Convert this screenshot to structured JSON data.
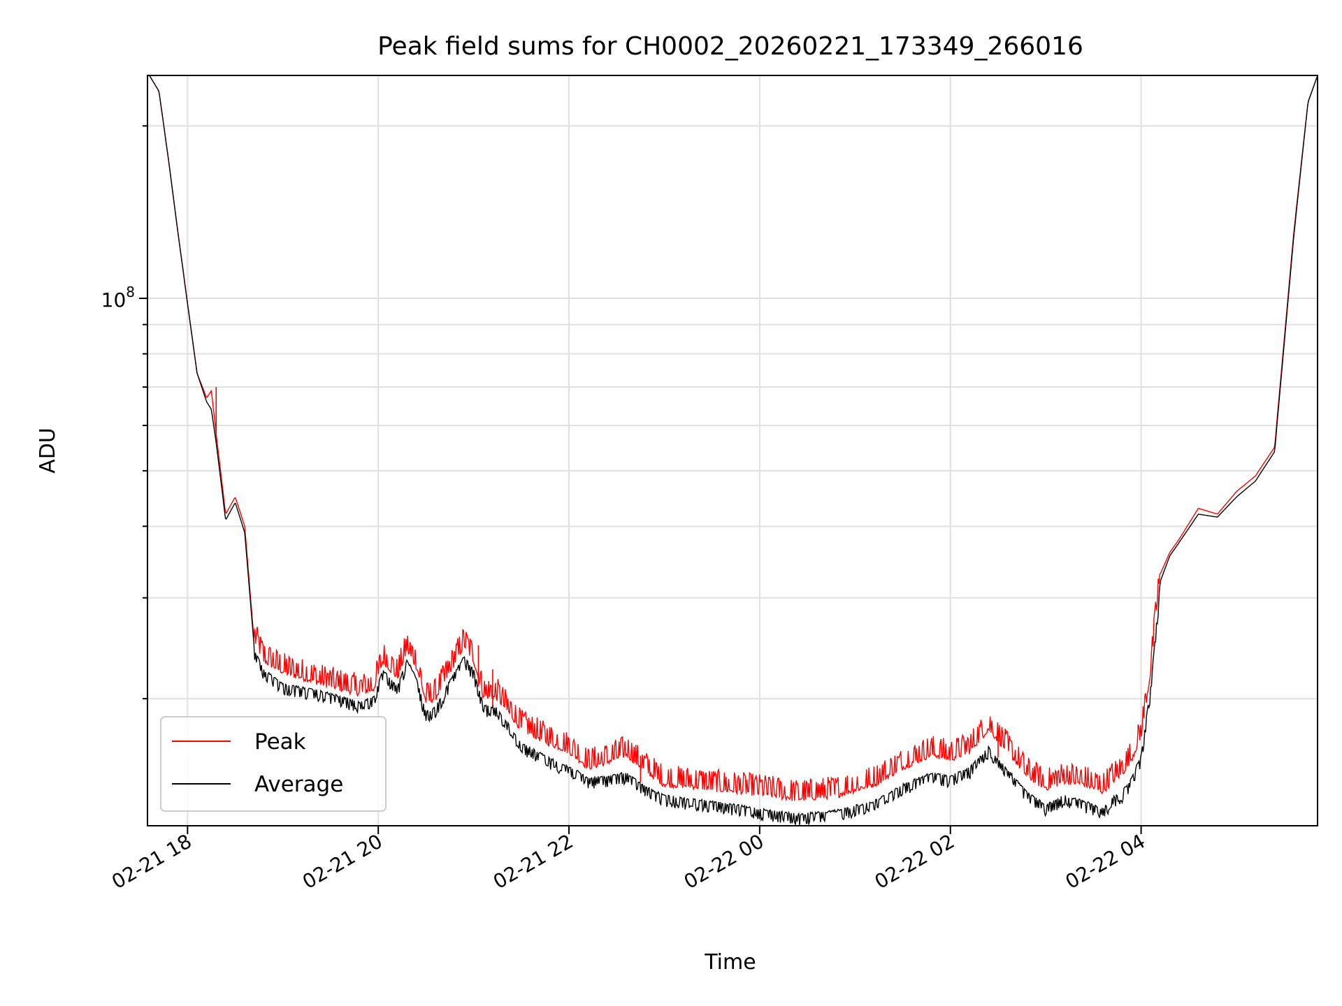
{
  "chart_data": {
    "type": "line",
    "title": "Peak field sums for CH0002_20260221_173349_266016",
    "xlabel": "Time",
    "ylabel": "ADU",
    "yscale": "log",
    "ylim": [
      12000000,
      245000000
    ],
    "xlim_hours": [
      17.58,
      5.85
    ],
    "x_ticks": [
      {
        "hour": 18,
        "label": "02-21 18"
      },
      {
        "hour": 20,
        "label": "02-21 20"
      },
      {
        "hour": 22,
        "label": "02-21 22"
      },
      {
        "hour": 24,
        "label": "02-22 00"
      },
      {
        "hour": 26,
        "label": "02-22 02"
      },
      {
        "hour": 28,
        "label": "02-22 04"
      }
    ],
    "y_ticks": [
      {
        "value": 100000000,
        "base": "10",
        "exponent": "8"
      }
    ],
    "y_minor_ticks": [
      20000000,
      30000000,
      40000000,
      50000000,
      60000000,
      70000000,
      80000000,
      90000000,
      200000000
    ],
    "grid": true,
    "legend_position": "lower-left",
    "colors": {
      "peak": "#ff0000",
      "average": "#000000",
      "grid": "#e0e0e0"
    },
    "series": [
      {
        "name": "Peak",
        "color": "#ff0000",
        "noise_fraction": 0.06,
        "hours": [
          17.6,
          17.7,
          17.8,
          17.9,
          18.0,
          18.1,
          18.2,
          18.25,
          18.3,
          18.4,
          18.5,
          18.6,
          18.7,
          18.8,
          18.9,
          19.0,
          19.2,
          19.5,
          19.8,
          19.95,
          20.05,
          20.2,
          20.3,
          20.4,
          20.5,
          20.6,
          20.75,
          20.9,
          21.0,
          21.1,
          21.25,
          21.5,
          21.8,
          22.0,
          22.2,
          22.4,
          22.6,
          22.8,
          23.0,
          23.3,
          23.6,
          24.0,
          24.4,
          24.8,
          25.2,
          25.5,
          25.8,
          26.0,
          26.2,
          26.4,
          26.6,
          26.8,
          27.0,
          27.2,
          27.4,
          27.6,
          27.7,
          27.8,
          27.9,
          28.0,
          28.1,
          28.2,
          28.3,
          28.4,
          28.6,
          28.8,
          29.0,
          29.2,
          29.4,
          29.6,
          29.75,
          29.85
        ],
        "values": [
          245000000,
          230000000,
          175000000,
          130000000,
          98000000,
          74000000,
          67000000,
          69000000,
          58000000,
          42000000,
          45000000,
          40000000,
          25000000,
          23000000,
          22500000,
          22000000,
          21500000,
          20800000,
          20200000,
          20500000,
          23000000,
          21500000,
          24000000,
          22500000,
          19500000,
          19800000,
          22000000,
          24500000,
          23000000,
          20000000,
          19800000,
          17500000,
          16500000,
          16000000,
          15000000,
          15300000,
          15800000,
          14800000,
          14000000,
          13900000,
          13700000,
          13500000,
          13200000,
          13400000,
          14000000,
          15000000,
          15800000,
          15500000,
          16000000,
          17500000,
          16000000,
          14500000,
          13800000,
          14200000,
          14000000,
          13600000,
          14200000,
          14600000,
          15500000,
          17000000,
          22000000,
          33000000,
          36000000,
          38000000,
          43000000,
          42000000,
          46000000,
          49000000,
          55000000,
          130000000,
          220000000,
          245000000
        ]
      },
      {
        "name": "Average",
        "color": "#000000",
        "noise_fraction": 0.03,
        "hours": [
          17.6,
          17.7,
          17.8,
          17.9,
          18.0,
          18.1,
          18.2,
          18.25,
          18.3,
          18.4,
          18.5,
          18.6,
          18.7,
          18.8,
          18.9,
          19.0,
          19.2,
          19.5,
          19.8,
          19.95,
          20.05,
          20.2,
          20.3,
          20.4,
          20.5,
          20.6,
          20.75,
          20.9,
          21.0,
          21.1,
          21.25,
          21.5,
          21.8,
          22.0,
          22.2,
          22.4,
          22.6,
          22.8,
          23.0,
          23.3,
          23.6,
          24.0,
          24.4,
          24.8,
          25.2,
          25.5,
          25.8,
          26.0,
          26.2,
          26.4,
          26.6,
          26.8,
          27.0,
          27.2,
          27.4,
          27.6,
          27.7,
          27.8,
          27.9,
          28.0,
          28.1,
          28.2,
          28.3,
          28.4,
          28.6,
          28.8,
          29.0,
          29.2,
          29.4,
          29.6,
          29.75,
          29.85
        ],
        "values": [
          245000000,
          230000000,
          175000000,
          130000000,
          98000000,
          74000000,
          66000000,
          64000000,
          56000000,
          41000000,
          44000000,
          39000000,
          24500000,
          22500000,
          22000000,
          21300000,
          21000000,
          20500000,
          19800000,
          20200000,
          22500000,
          21000000,
          23500000,
          21800000,
          19000000,
          19400000,
          21600000,
          23800000,
          22500000,
          19600000,
          19300000,
          16800000,
          15800000,
          15300000,
          14600000,
          14700000,
          14900000,
          14100000,
          13600000,
          13400000,
          13200000,
          12900000,
          12600000,
          12800000,
          13300000,
          14200000,
          14900000,
          14700000,
          15200000,
          16500000,
          15100000,
          13800000,
          13100000,
          13600000,
          13300000,
          12900000,
          13500000,
          13800000,
          14600000,
          16000000,
          21000000,
          32000000,
          35500000,
          37500000,
          42000000,
          41500000,
          45000000,
          48000000,
          54000000,
          128000000,
          220000000,
          245000000
        ]
      }
    ],
    "spikes_peak": [
      {
        "hour": 18.3,
        "value": 70000000
      },
      {
        "hour": 21.05,
        "value": 24800000
      },
      {
        "hour": 21.2,
        "value": 22500000
      },
      {
        "hour": 22.75,
        "value": 15900000
      },
      {
        "hour": 26.5,
        "value": 17800000
      }
    ]
  },
  "legend": {
    "peak_label": "Peak",
    "average_label": "Average"
  }
}
